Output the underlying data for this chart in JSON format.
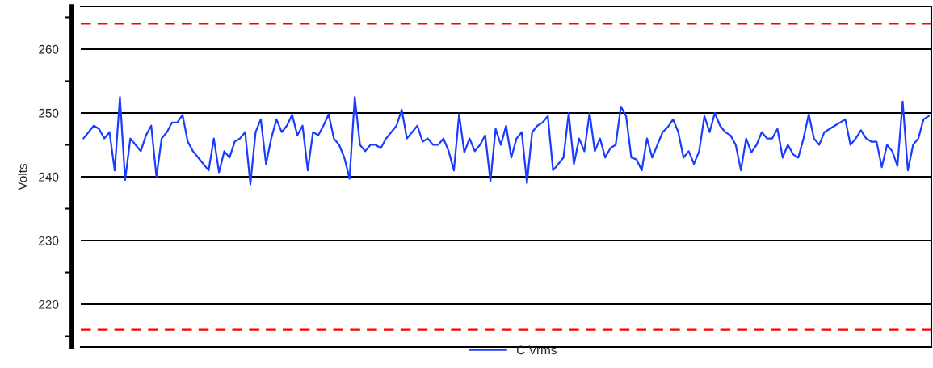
{
  "chart_data": {
    "type": "line",
    "ylabel": "Volts",
    "legend": "bottom",
    "grid": "y",
    "line_style": "solid",
    "marker": "none",
    "categories": [
      null,
      null,
      null,
      null,
      null,
      null,
      null,
      null,
      null,
      null,
      null,
      null,
      null,
      null,
      null,
      null,
      null,
      null,
      null,
      null,
      null,
      null,
      null,
      null,
      null,
      null,
      null,
      null,
      null,
      null,
      null,
      null,
      null,
      null,
      null,
      null,
      null,
      null,
      null,
      null,
      null,
      null,
      null,
      null,
      null,
      null,
      null,
      null,
      null,
      null,
      null,
      null,
      null,
      null,
      null,
      null,
      null,
      null,
      null,
      null,
      null,
      null,
      null,
      null,
      null,
      null,
      null,
      null,
      null,
      null,
      null,
      null,
      null,
      null,
      null,
      null,
      null,
      null,
      null,
      null,
      null,
      null,
      null,
      null,
      null,
      null,
      null,
      null,
      null,
      null,
      null,
      null,
      null,
      null,
      null,
      null,
      null,
      null,
      null,
      null,
      null,
      null,
      null,
      null,
      null,
      null,
      null,
      null,
      null,
      null,
      null,
      null,
      null,
      null,
      null,
      null,
      null,
      null,
      null,
      null,
      null,
      null,
      null,
      null,
      null,
      null,
      null,
      null,
      null,
      null,
      null,
      null,
      null,
      null,
      null,
      null,
      null,
      null,
      null,
      null,
      null,
      null,
      null,
      null,
      null,
      null,
      null,
      null,
      null,
      null,
      null,
      null,
      null,
      null,
      null,
      null,
      null,
      null,
      null,
      null,
      null,
      null,
      null
    ],
    "ylim": [
      213.3,
      266.7
    ],
    "yticks": [
      {
        "value": 215,
        "label": null
      },
      220,
      {
        "value": 225,
        "label": null
      },
      230,
      {
        "value": 235,
        "label": null
      },
      240,
      {
        "value": 245,
        "label": null
      },
      250,
      {
        "value": 255,
        "label": null
      },
      260,
      {
        "value": 265,
        "label": null
      }
    ],
    "ref_lines": [
      {
        "axis": "y",
        "value": 264,
        "color": "#ff0000",
        "line_style": "dashed"
      },
      {
        "axis": "y",
        "value": 216,
        "color": "#ff0000",
        "line_style": "dashed"
      }
    ],
    "series": [
      {
        "name": "C Vrms",
        "color": "#1a3cff",
        "values": [
          246,
          247,
          248,
          247.5,
          246,
          247,
          241,
          252.5,
          239.5,
          246,
          245,
          244,
          246.5,
          248,
          240,
          246,
          247,
          248.5,
          248.5,
          249.7,
          245.5,
          244,
          243,
          242,
          241,
          246,
          240.7,
          244,
          243,
          245.5,
          246,
          247,
          238.8,
          247,
          249,
          242,
          246,
          249,
          247,
          248,
          249.7,
          246.5,
          248,
          241,
          247,
          246.5,
          248,
          249.8,
          246,
          245,
          243,
          239.7,
          252.5,
          245,
          244,
          245,
          245,
          244.5,
          246,
          247,
          248,
          250.5,
          246,
          247,
          248,
          245.5,
          246,
          245,
          245,
          246,
          244,
          241,
          249.8,
          243.8,
          246,
          244,
          245,
          246.5,
          239.3,
          247.5,
          245,
          248,
          243,
          246,
          247,
          239,
          247,
          248,
          248.5,
          249.5,
          241,
          242,
          243,
          250,
          242,
          246,
          244,
          250,
          244,
          246,
          243,
          244.5,
          245,
          251,
          249.5,
          243,
          242.7,
          241,
          246,
          243,
          245,
          247,
          247.8,
          249,
          247,
          243,
          244,
          242,
          244,
          249.5,
          247,
          250,
          248,
          247,
          246.5,
          245,
          241,
          246,
          243.8,
          245,
          247,
          246,
          246,
          247.5,
          243,
          245,
          243.5,
          243,
          246,
          249.8,
          246,
          245,
          247,
          247.5,
          248,
          248.5,
          249,
          245,
          246,
          247.3,
          246,
          245.5,
          245.5,
          241.5,
          245,
          244,
          241.7,
          251.8,
          241,
          245,
          246,
          249,
          249.5
        ]
      }
    ]
  }
}
